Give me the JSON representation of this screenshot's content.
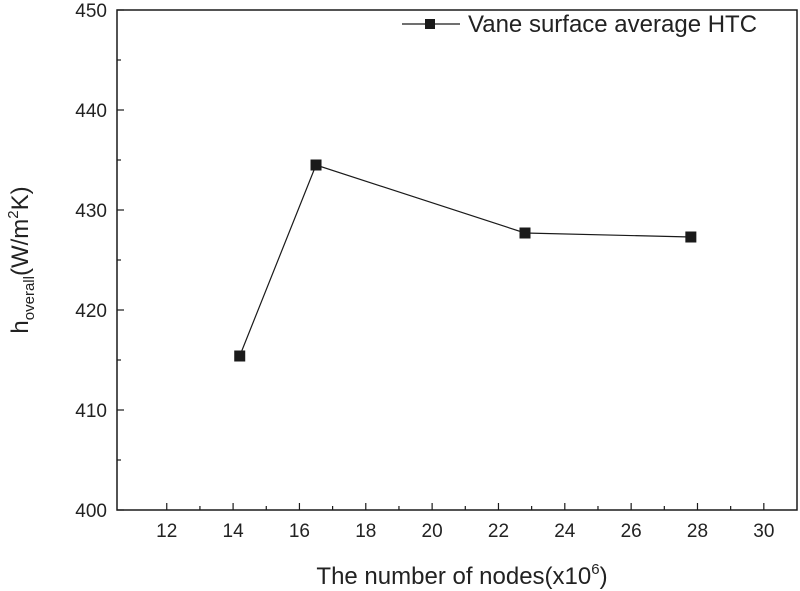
{
  "chart_data": {
    "type": "line",
    "title": "",
    "xlabel": {
      "text": "The number of nodes(x10",
      "superscript": "6",
      "suffix": ")"
    },
    "ylabel": {
      "base": "h",
      "subscript": "overall",
      "unit_prefix": "(W/m",
      "superscript": "2",
      "unit_suffix": "K)"
    },
    "xlim": [
      10.5,
      31
    ],
    "ylim": [
      400,
      450
    ],
    "xticks": [
      12,
      14,
      16,
      18,
      20,
      22,
      24,
      26,
      28,
      30
    ],
    "yticks": [
      400,
      410,
      420,
      430,
      440,
      450
    ],
    "grid": false,
    "legend_position": "top-right",
    "series": [
      {
        "name": "Vane surface average HTC",
        "marker": "square",
        "color": "#1a1a1a",
        "x": [
          14.2,
          16.5,
          22.8,
          27.8
        ],
        "y": [
          415.4,
          434.5,
          427.7,
          427.3
        ]
      }
    ]
  }
}
